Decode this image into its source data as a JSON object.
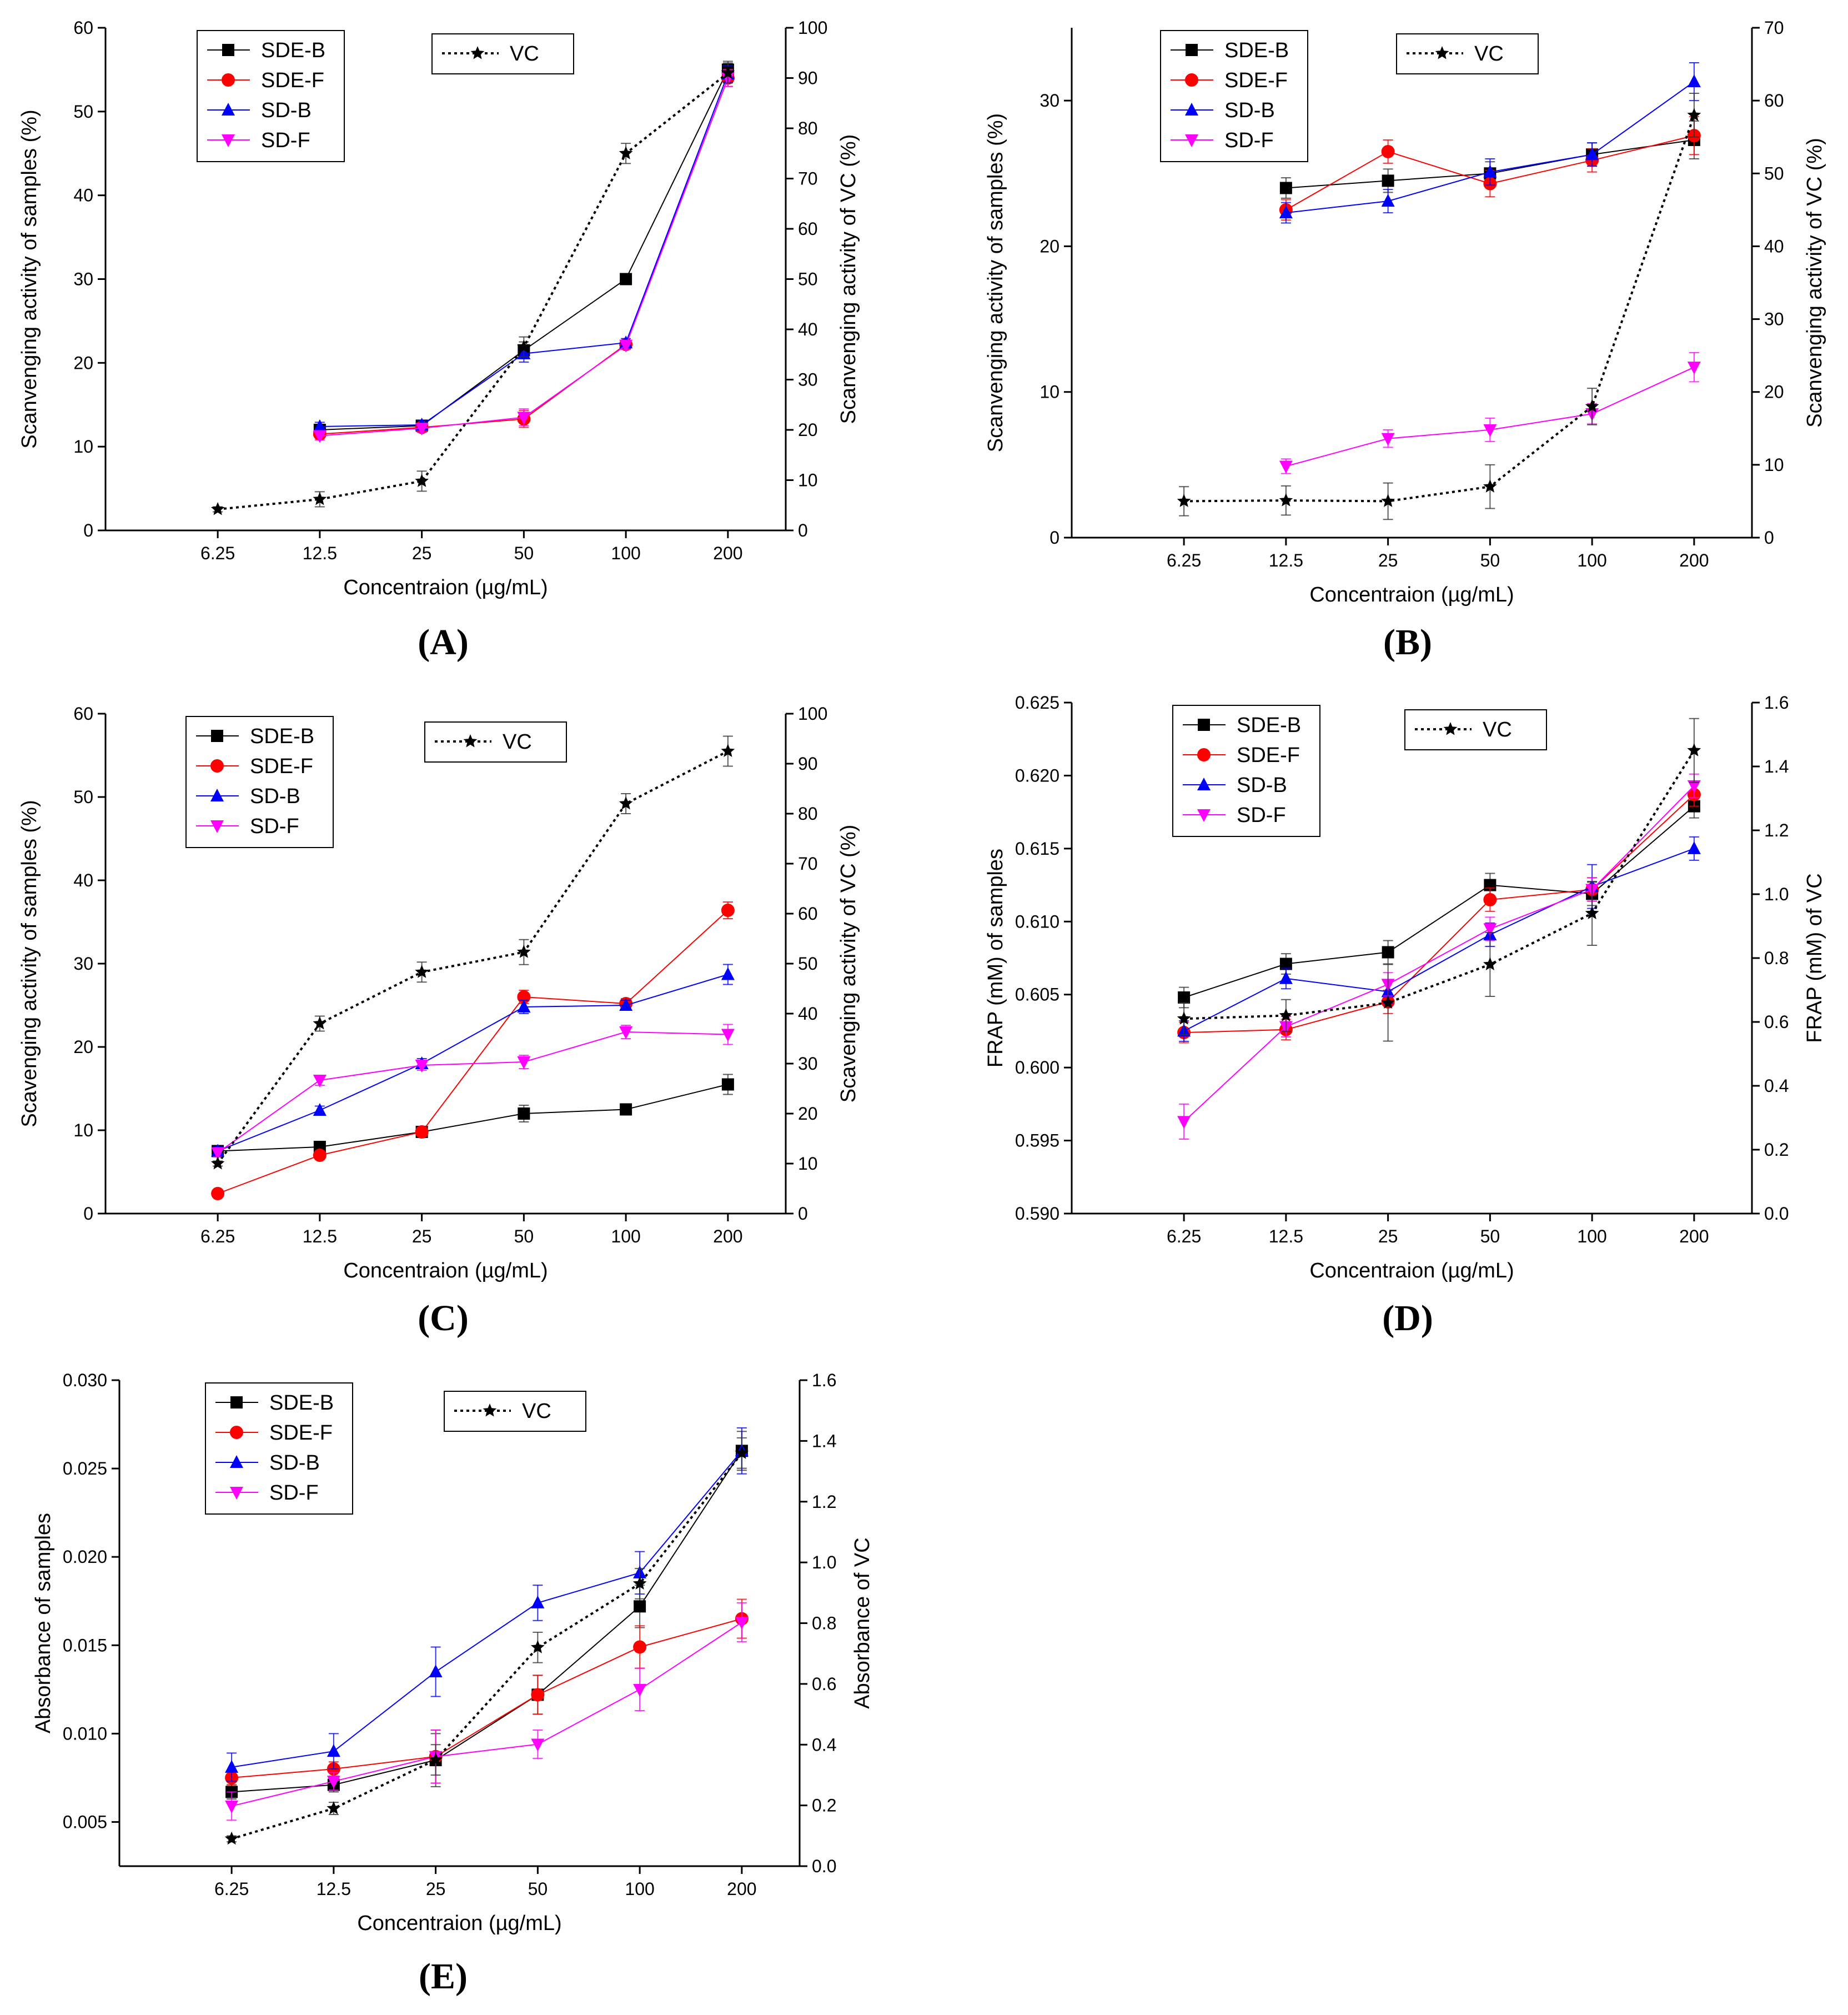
{
  "figure": {
    "panel_letters": [
      "(A)",
      "(B)",
      "(C)",
      "(D)",
      "(E)"
    ]
  },
  "series_style": {
    "SDE-B": {
      "color": "#000000",
      "marker": "square"
    },
    "SDE-F": {
      "color": "#ff0000",
      "marker": "circle"
    },
    "SD-B": {
      "color": "#0000ff",
      "marker": "triangle-up"
    },
    "SD-F": {
      "color": "#ff00ff",
      "marker": "triangle-down"
    },
    "VC": {
      "color": "#000000",
      "marker": "star",
      "dash": true
    }
  },
  "chart_data": [
    {
      "panel": "(A)",
      "type": "line",
      "categories": [
        "6.25",
        "12.5",
        "25",
        "50",
        "100",
        "200"
      ],
      "xlabel": "Concentraion (µg/mL)",
      "ylabel": "Scanvenging activity of samples (%)",
      "y2label": "Scanvenging activity of VC (%)",
      "ylim": [
        0,
        60
      ],
      "yticks": [
        0,
        10,
        20,
        30,
        40,
        50,
        60
      ],
      "y2lim": [
        0,
        100
      ],
      "y2ticks": [
        0,
        10,
        20,
        30,
        40,
        50,
        60,
        70,
        80,
        90,
        100
      ],
      "legend": [
        "SDE-B",
        "SDE-F",
        "SD-B",
        "SD-F"
      ],
      "legend2": "VC",
      "series": [
        {
          "name": "SDE-B",
          "axis": "left",
          "values": [
            null,
            12.0,
            12.5,
            21.5,
            30.0,
            55.0
          ],
          "errors": [
            0,
            0.5,
            0.5,
            1.0,
            0.5,
            1.0
          ]
        },
        {
          "name": "SDE-F",
          "axis": "left",
          "values": [
            null,
            11.5,
            12.3,
            13.3,
            22.2,
            54.0
          ],
          "errors": [
            0,
            0.5,
            0.5,
            1.0,
            0.5,
            1.0
          ]
        },
        {
          "name": "SD-B",
          "axis": "left",
          "values": [
            null,
            12.4,
            12.6,
            21.1,
            22.4,
            54.5
          ],
          "errors": [
            0,
            0.5,
            0.5,
            1.0,
            0.5,
            1.0
          ]
        },
        {
          "name": "SD-F",
          "axis": "left",
          "values": [
            null,
            11.3,
            12.2,
            13.5,
            22.1,
            54.0
          ],
          "errors": [
            0,
            0.5,
            0.5,
            1.0,
            0.5,
            1.0
          ]
        },
        {
          "name": "VC",
          "axis": "right",
          "values": [
            4.2,
            6.2,
            9.8,
            36.5,
            75.0,
            91.0
          ],
          "errors": [
            0.5,
            1.5,
            2.0,
            2.0,
            2.0,
            2.0
          ]
        }
      ]
    },
    {
      "panel": "(B)",
      "type": "line",
      "categories": [
        "6.25",
        "12.5",
        "25",
        "50",
        "100",
        "200"
      ],
      "xlabel": "Concentraion (µg/mL)",
      "ylabel": "Scanvenging activity of samples (%)",
      "y2label": "Scanvenging activity of VC (%)",
      "ylim": [
        0,
        35
      ],
      "yticks": [
        0,
        10,
        20,
        30
      ],
      "y2lim": [
        0,
        70
      ],
      "y2ticks": [
        0,
        10,
        20,
        30,
        40,
        50,
        60,
        70
      ],
      "legend": [
        "SDE-B",
        "SDE-F",
        "SD-B",
        "SD-F"
      ],
      "legend2": "VC",
      "series": [
        {
          "name": "SDE-B",
          "axis": "left",
          "values": [
            null,
            24.0,
            24.5,
            25.0,
            26.3,
            27.3
          ],
          "errors": [
            0,
            0.7,
            0.8,
            0.8,
            0.8,
            1.3
          ]
        },
        {
          "name": "SDE-F",
          "axis": "left",
          "values": [
            null,
            22.5,
            26.5,
            24.3,
            25.9,
            27.6
          ],
          "errors": [
            0,
            0.7,
            0.8,
            0.9,
            0.8,
            1.3
          ]
        },
        {
          "name": "SD-B",
          "axis": "left",
          "values": [
            null,
            22.3,
            23.1,
            25.1,
            26.3,
            31.3
          ],
          "errors": [
            0,
            0.7,
            0.8,
            0.9,
            0.8,
            1.3
          ]
        },
        {
          "name": "SD-F",
          "axis": "left",
          "values": [
            null,
            4.9,
            6.8,
            7.4,
            8.5,
            11.7
          ],
          "errors": [
            0,
            0.5,
            0.6,
            0.8,
            0.7,
            1.0
          ]
        },
        {
          "name": "VC",
          "axis": "right",
          "values": [
            5.0,
            5.1,
            5.0,
            7.0,
            18.0,
            58.0
          ],
          "errors": [
            2.0,
            2.0,
            2.5,
            3.0,
            2.5,
            3.0
          ]
        }
      ]
    },
    {
      "panel": "(C)",
      "type": "line",
      "categories": [
        "6.25",
        "12.5",
        "25",
        "50",
        "100",
        "200"
      ],
      "xlabel": "Concentraion (µg/mL)",
      "ylabel": "Scavenging activity of samples (%)",
      "y2label": "Scavenging activity of VC (%)",
      "ylim": [
        0,
        60
      ],
      "yticks": [
        0,
        10,
        20,
        30,
        40,
        50,
        60
      ],
      "y2lim": [
        0,
        100
      ],
      "y2ticks": [
        0,
        10,
        20,
        30,
        40,
        50,
        60,
        70,
        80,
        90,
        100
      ],
      "legend": [
        "SDE-B",
        "SDE-F",
        "SD-B",
        "SD-F"
      ],
      "legend2": "VC",
      "series": [
        {
          "name": "SDE-B",
          "axis": "left",
          "values": [
            7.5,
            8.0,
            9.8,
            12.0,
            12.5,
            15.5
          ],
          "errors": [
            0.5,
            0.5,
            0.5,
            1.0,
            0.5,
            1.2
          ]
        },
        {
          "name": "SDE-F",
          "axis": "left",
          "values": [
            2.4,
            7.0,
            9.8,
            26.0,
            25.2,
            36.4
          ],
          "errors": [
            0.3,
            0.5,
            0.5,
            0.8,
            0.6,
            1.0
          ]
        },
        {
          "name": "SD-B",
          "axis": "left",
          "values": [
            7.5,
            12.4,
            18.0,
            24.8,
            25.0,
            28.7
          ],
          "errors": [
            0.5,
            0.5,
            0.6,
            0.8,
            0.6,
            1.2
          ]
        },
        {
          "name": "SD-F",
          "axis": "left",
          "values": [
            7.3,
            16.0,
            17.8,
            18.2,
            21.8,
            21.5
          ],
          "errors": [
            0.5,
            0.6,
            0.6,
            0.8,
            0.8,
            1.2
          ]
        },
        {
          "name": "VC",
          "axis": "right",
          "values": [
            10.0,
            38.0,
            48.3,
            52.3,
            82.0,
            92.5
          ],
          "errors": [
            0.5,
            1.5,
            2.0,
            2.5,
            2.0,
            3.0
          ]
        }
      ]
    },
    {
      "panel": "(D)",
      "type": "line",
      "categories": [
        "6.25",
        "12.5",
        "25",
        "50",
        "100",
        "200"
      ],
      "xlabel": "Concentraion (µg/mL)",
      "ylabel": "FRAP (mM) of samples",
      "y2label": "FRAP (mM) of VC",
      "ylim": [
        0.59,
        0.625
      ],
      "yticks": [
        "0.590",
        "0.595",
        "0.600",
        "0.605",
        "0.610",
        "0.615",
        "0.620",
        "0.625"
      ],
      "y2lim": [
        0,
        1.6
      ],
      "y2ticks": [
        "0.0",
        "0.2",
        "0.4",
        "0.6",
        "0.8",
        "1.0",
        "1.2",
        "1.4",
        "1.6"
      ],
      "legend": [
        "SDE-B",
        "SDE-F",
        "SD-B",
        "SD-F"
      ],
      "legend2": "VC",
      "series": [
        {
          "name": "SDE-B",
          "axis": "left",
          "values": [
            0.6048,
            0.6071,
            0.6079,
            0.6125,
            0.6119,
            0.6179
          ],
          "errors": [
            0.0007,
            0.0007,
            0.0008,
            0.0008,
            0.0008,
            0.0008
          ]
        },
        {
          "name": "SDE-F",
          "axis": "left",
          "values": [
            0.6024,
            0.6026,
            0.6045,
            0.6115,
            0.6122,
            0.6187
          ],
          "errors": [
            0.0007,
            0.0007,
            0.0008,
            0.0008,
            0.0008,
            0.0008
          ]
        },
        {
          "name": "SD-B",
          "axis": "left",
          "values": [
            0.6025,
            0.6061,
            0.6052,
            0.6091,
            0.6124,
            0.615
          ],
          "errors": [
            0.0007,
            0.0007,
            0.0008,
            0.0008,
            0.0015,
            0.0008
          ]
        },
        {
          "name": "SD-F",
          "axis": "left",
          "values": [
            0.5963,
            0.6028,
            0.6057,
            0.6095,
            0.6122,
            0.6193
          ],
          "errors": [
            0.0012,
            0.0007,
            0.0008,
            0.0008,
            0.0008,
            0.0008
          ]
        },
        {
          "name": "VC",
          "axis": "right",
          "values": [
            0.61,
            0.62,
            0.66,
            0.78,
            0.94,
            1.45
          ],
          "errors": [
            0.05,
            0.05,
            0.12,
            0.1,
            0.1,
            0.1
          ]
        }
      ]
    },
    {
      "panel": "(E)",
      "type": "line",
      "categories": [
        "6.25",
        "12.5",
        "25",
        "50",
        "100",
        "200"
      ],
      "xlabel": "Concentraion (µg/mL)",
      "ylabel": "Absorbance of samples",
      "y2label": "Absorbance of VC",
      "ylim": [
        0.0025,
        0.03
      ],
      "yticks": [
        "0.005",
        "0.010",
        "0.015",
        "0.020",
        "0.025",
        "0.030"
      ],
      "y2lim": [
        0,
        1.6
      ],
      "y2ticks": [
        "0.0",
        "0.2",
        "0.4",
        "0.6",
        "0.8",
        "1.0",
        "1.2",
        "1.4",
        "1.6"
      ],
      "legend": [
        "SDE-B",
        "SDE-F",
        "SD-B",
        "SD-F"
      ],
      "legend2": "VC",
      "series": [
        {
          "name": "SDE-B",
          "axis": "left",
          "values": [
            0.0067,
            0.0071,
            0.0085,
            0.0122,
            0.0172,
            0.026
          ],
          "errors": [
            0.0004,
            0.0004,
            0.0015,
            0.0011,
            0.0012,
            0.0011
          ]
        },
        {
          "name": "SDE-F",
          "axis": "left",
          "values": [
            0.0075,
            0.008,
            0.0087,
            0.0122,
            0.0149,
            0.0165
          ],
          "errors": [
            0.0004,
            0.0004,
            0.0015,
            0.0011,
            0.0012,
            0.0011
          ]
        },
        {
          "name": "SD-B",
          "axis": "left",
          "values": [
            0.0081,
            0.009,
            0.0135,
            0.0174,
            0.0191,
            0.026
          ],
          "errors": [
            0.0008,
            0.001,
            0.0014,
            0.001,
            0.0012,
            0.0013
          ]
        },
        {
          "name": "SD-F",
          "axis": "left",
          "values": [
            0.0059,
            0.0073,
            0.0087,
            0.0094,
            0.0125,
            0.0163
          ],
          "errors": [
            0.0008,
            0.0005,
            0.0015,
            0.0008,
            0.0012,
            0.0011
          ]
        },
        {
          "name": "VC",
          "axis": "right",
          "values": [
            0.09,
            0.19,
            0.35,
            0.72,
            0.93,
            1.36
          ],
          "errors": [
            0.01,
            0.02,
            0.05,
            0.05,
            0.05,
            0.05
          ]
        }
      ]
    }
  ]
}
